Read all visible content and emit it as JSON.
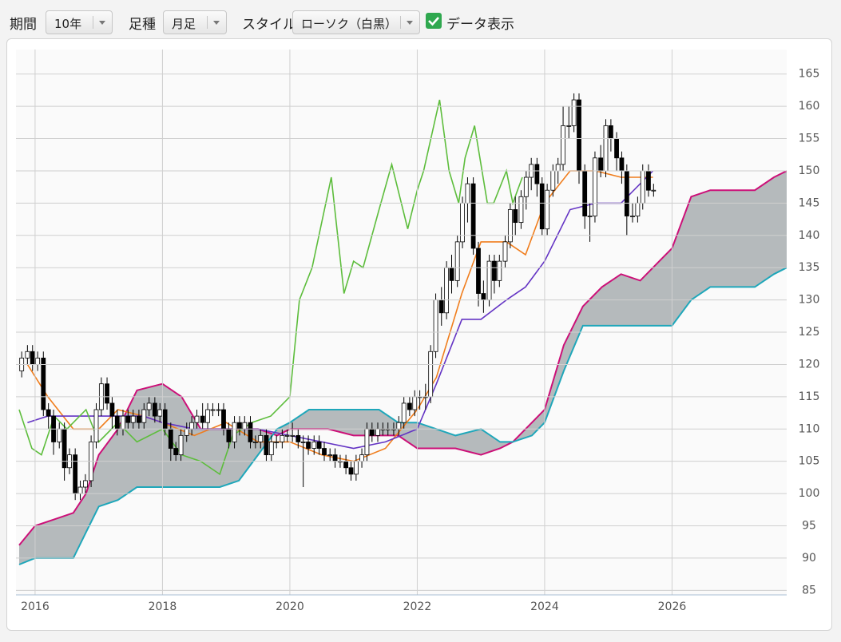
{
  "toolbar": {
    "period_label": "期間",
    "period_value": "10年",
    "bar_label": "足種",
    "bar_value": "月足",
    "style_label": "スタイル",
    "style_value": "ローソク（白黒）",
    "data_label": "データ表示"
  },
  "chart_data": {
    "type": "candlestick",
    "x": [
      2015.79,
      2015.88,
      2015.96,
      2016.04,
      2016.13,
      2016.21,
      2016.29,
      2016.38,
      2016.46,
      2016.54,
      2016.63,
      2016.71,
      2016.79,
      2016.88,
      2016.96,
      2017.04,
      2017.13,
      2017.21,
      2017.29,
      2017.38,
      2017.46,
      2017.54,
      2017.63,
      2017.71,
      2017.79,
      2017.88,
      2017.96,
      2018.04,
      2018.13,
      2018.21,
      2018.29,
      2018.38,
      2018.46,
      2018.54,
      2018.63,
      2018.71,
      2018.79,
      2018.88,
      2018.96,
      2019.04,
      2019.13,
      2019.21,
      2019.29,
      2019.38,
      2019.46,
      2019.54,
      2019.63,
      2019.71,
      2019.79,
      2019.88,
      2019.96,
      2020.04,
      2020.13,
      2020.21,
      2020.29,
      2020.38,
      2020.46,
      2020.54,
      2020.63,
      2020.71,
      2020.79,
      2020.88,
      2020.96,
      2021.04,
      2021.13,
      2021.21,
      2021.29,
      2021.38,
      2021.46,
      2021.54,
      2021.63,
      2021.71,
      2021.79,
      2021.88,
      2021.96,
      2022.04,
      2022.13,
      2022.21,
      2022.29,
      2022.38,
      2022.46,
      2022.54,
      2022.63,
      2022.71,
      2022.79,
      2022.88,
      2022.96,
      2023.04,
      2023.13,
      2023.21,
      2023.29,
      2023.38,
      2023.46,
      2023.54,
      2023.63,
      2023.71,
      2023.79,
      2023.88,
      2023.96,
      2024.04,
      2024.13,
      2024.21,
      2024.29,
      2024.38,
      2024.46,
      2024.54,
      2024.63,
      2024.71,
      2024.79,
      2024.88,
      2024.96,
      2025.04,
      2025.13,
      2025.21,
      2025.29,
      2025.38,
      2025.46,
      2025.54,
      2025.63,
      2025.71
    ],
    "open": [
      119,
      121,
      122,
      120,
      121,
      113,
      112,
      108,
      110,
      104,
      106,
      100,
      101,
      102,
      108,
      113,
      117,
      114,
      112,
      110,
      112,
      111,
      112,
      111,
      113,
      114,
      112,
      113,
      110,
      107,
      106,
      109,
      110,
      111,
      112,
      111,
      113,
      113,
      113,
      110,
      108,
      111,
      110,
      111,
      108,
      108,
      109,
      106,
      108,
      108,
      109,
      109,
      109,
      108,
      108,
      107,
      108,
      107,
      106,
      106,
      105,
      105,
      104,
      103,
      105,
      106,
      110,
      109,
      110,
      110,
      110,
      110,
      111,
      114,
      113,
      115,
      115,
      115,
      122,
      130,
      128,
      135,
      133,
      139,
      145,
      148,
      138,
      131,
      130,
      136,
      133,
      136,
      139,
      144,
      142,
      146,
      149,
      151,
      148,
      141,
      147,
      150,
      151,
      157,
      157,
      161,
      150,
      143,
      143,
      152,
      150,
      157,
      155,
      152,
      150,
      143,
      143,
      145,
      150,
      147
    ],
    "high": [
      122,
      123,
      123,
      122,
      122,
      114,
      113,
      111,
      111,
      107,
      107,
      102,
      103,
      109,
      114,
      118,
      118,
      115,
      113,
      113,
      113,
      113,
      113,
      114,
      115,
      115,
      114,
      114,
      111,
      108,
      110,
      111,
      112,
      113,
      114,
      114,
      114,
      114,
      114,
      111,
      112,
      112,
      112,
      112,
      109,
      110,
      110,
      109,
      109,
      110,
      110,
      111,
      110,
      109,
      109,
      109,
      109,
      108,
      107,
      107,
      106,
      106,
      105,
      106,
      107,
      111,
      111,
      111,
      111,
      111,
      111,
      112,
      115,
      115,
      116,
      116,
      117,
      123,
      131,
      132,
      136,
      137,
      140,
      146,
      149,
      149,
      139,
      133,
      137,
      137,
      137,
      140,
      145,
      146,
      147,
      150,
      152,
      152,
      149,
      148,
      151,
      152,
      160,
      160,
      162,
      162,
      151,
      145,
      153,
      154,
      158,
      158,
      156,
      153,
      151,
      145,
      146,
      151,
      151,
      148
    ],
    "low": [
      118,
      120,
      119,
      119,
      112,
      110,
      106,
      107,
      102,
      103,
      99,
      99,
      100,
      101,
      107,
      112,
      113,
      110,
      109,
      109,
      110,
      110,
      110,
      110,
      112,
      111,
      111,
      109,
      105,
      105,
      105,
      108,
      109,
      110,
      110,
      110,
      112,
      112,
      109,
      107,
      107,
      109,
      109,
      107,
      107,
      107,
      105,
      105,
      107,
      107,
      108,
      108,
      107,
      101,
      106,
      106,
      106,
      105,
      105,
      104,
      104,
      103,
      102,
      102,
      104,
      105,
      108,
      108,
      109,
      109,
      109,
      109,
      110,
      112,
      112,
      113,
      113,
      114,
      121,
      126,
      127,
      131,
      132,
      138,
      142,
      137,
      129,
      128,
      129,
      131,
      132,
      135,
      138,
      140,
      141,
      144,
      147,
      146,
      140,
      140,
      146,
      148,
      150,
      155,
      156,
      148,
      141,
      139,
      142,
      149,
      149,
      153,
      150,
      148,
      140,
      142,
      142,
      144,
      146,
      146
    ],
    "close": [
      121,
      122,
      120,
      121,
      113,
      112,
      108,
      110,
      104,
      106,
      100,
      101,
      102,
      108,
      113,
      117,
      114,
      112,
      110,
      112,
      111,
      112,
      111,
      113,
      114,
      112,
      113,
      110,
      107,
      106,
      109,
      110,
      111,
      112,
      111,
      113,
      113,
      113,
      110,
      108,
      111,
      110,
      111,
      108,
      108,
      109,
      106,
      108,
      108,
      109,
      109,
      109,
      108,
      108,
      107,
      108,
      107,
      106,
      106,
      105,
      105,
      104,
      103,
      105,
      106,
      110,
      109,
      110,
      110,
      110,
      110,
      111,
      114,
      113,
      115,
      115,
      115,
      122,
      130,
      128,
      135,
      133,
      139,
      145,
      148,
      138,
      131,
      130,
      136,
      133,
      136,
      139,
      144,
      142,
      146,
      149,
      151,
      148,
      141,
      147,
      150,
      151,
      157,
      157,
      161,
      150,
      143,
      143,
      152,
      150,
      157,
      155,
      152,
      150,
      143,
      143,
      145,
      150,
      147,
      147
    ],
    "up_color": "#ffffff",
    "down_color": "#000000",
    "lines": [
      {
        "color": "#f07d1c",
        "x": [
          2015.88,
          2016.2,
          2016.6,
          2017.0,
          2017.3,
          2017.7,
          2018.0,
          2018.5,
          2019.0,
          2019.5,
          2020.0,
          2020.5,
          2021.0,
          2021.5,
          2022.0,
          2022.3,
          2022.7,
          2023.0,
          2023.4,
          2023.7,
          2024.0,
          2024.4,
          2024.8,
          2025.2,
          2025.7
        ],
        "values": [
          120,
          115,
          110,
          110,
          113,
          112,
          111,
          109,
          111,
          108,
          108,
          106,
          105,
          107,
          113,
          118,
          131,
          139,
          139,
          137,
          145,
          150,
          150,
          149,
          149
        ]
      },
      {
        "color": "#6434c4",
        "x": [
          2015.88,
          2016.2,
          2016.6,
          2017.0,
          2017.3,
          2017.7,
          2018.0,
          2018.5,
          2019.0,
          2019.5,
          2020.0,
          2020.5,
          2021.0,
          2021.5,
          2022.0,
          2022.3,
          2022.7,
          2023.0,
          2023.4,
          2023.7,
          2024.0,
          2024.4,
          2024.8,
          2025.2,
          2025.7
        ],
        "values": [
          111,
          112,
          112,
          112,
          112,
          112,
          111,
          110,
          110,
          110,
          109,
          108,
          107,
          108,
          110,
          117,
          127,
          127,
          130,
          132,
          136,
          144,
          145,
          145,
          150
        ]
      },
      {
        "color": "#5dbd3c",
        "x": [
          2015.75,
          2015.95,
          2016.1,
          2016.3,
          2016.5,
          2016.8,
          2017.0,
          2017.3,
          2017.6,
          2018.0,
          2018.3,
          2018.6,
          2018.9,
          2019.1,
          2019.4,
          2019.7,
          2020.0,
          2020.15,
          2020.35,
          2020.65,
          2020.85,
          2021.0,
          2021.15,
          2021.4,
          2021.6,
          2021.85,
          2022.0,
          2022.1,
          2022.35,
          2022.5,
          2022.65,
          2022.75,
          2022.9,
          2023.1,
          2023.2,
          2023.4,
          2023.5,
          2023.65
        ],
        "values": [
          113,
          107,
          106,
          112,
          110,
          113,
          108,
          111,
          108,
          110,
          106,
          105,
          103,
          109,
          111,
          112,
          115,
          130,
          135,
          149,
          131,
          136,
          135,
          144,
          151,
          141,
          147,
          150,
          161,
          150,
          145,
          152,
          157,
          145,
          145,
          150,
          145,
          149
        ]
      }
    ],
    "cloud": {
      "color": "#b5babc",
      "x": [
        2015.75,
        2016.0,
        2016.3,
        2016.6,
        2016.8,
        2017.0,
        2017.3,
        2017.6,
        2018.0,
        2018.3,
        2018.6,
        2018.9,
        2019.2,
        2019.5,
        2019.8,
        2020.0,
        2020.3,
        2020.6,
        2021.0,
        2021.4,
        2021.7,
        2022.0,
        2022.3,
        2022.6,
        2023.0,
        2023.3,
        2023.5,
        2023.8,
        2024.0,
        2024.3,
        2024.6,
        2024.9,
        2025.2,
        2025.5,
        2025.8,
        2026.0,
        2026.3,
        2026.6,
        2027.0,
        2027.3,
        2027.6,
        2027.8
      ],
      "span_a": {
        "color": "#cc1078",
        "values": [
          92,
          95,
          96,
          97,
          100,
          106,
          110,
          116,
          117,
          115,
          110,
          110,
          110,
          110,
          109,
          110,
          110,
          110,
          109,
          109,
          109,
          107,
          107,
          107,
          106,
          107,
          108,
          111,
          113,
          123,
          129,
          132,
          134,
          133,
          136,
          138,
          146,
          147,
          147,
          147,
          149,
          150
        ]
      },
      "span_b": {
        "color": "#1fa7ba",
        "values": [
          89,
          90,
          90,
          90,
          94,
          98,
          99,
          101,
          101,
          101,
          101,
          101,
          102,
          106,
          110,
          111,
          113,
          113,
          113,
          113,
          111,
          111,
          110,
          109,
          110,
          108,
          108,
          109,
          111,
          119,
          126,
          126,
          126,
          126,
          126,
          126,
          130,
          132,
          132,
          132,
          134,
          135
        ]
      }
    },
    "xlim": [
      2015.7,
      2027.8
    ],
    "xticks": [
      2016,
      2018,
      2020,
      2022,
      2024,
      2026
    ],
    "ylim": [
      84.3,
      168.8
    ],
    "yticks": [
      85,
      90,
      95,
      100,
      105,
      110,
      115,
      120,
      125,
      130,
      135,
      140,
      145,
      150,
      155,
      160,
      165
    ],
    "grid": true
  }
}
